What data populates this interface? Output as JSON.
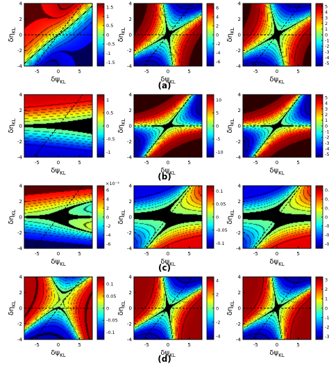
{
  "figure": {
    "rows": [
      {
        "label": "(a)",
        "colorbar_exponent": "",
        "panels": [
          {
            "func": "a1",
            "cb_ticks": [
              "1.5",
              "1",
              "0.5",
              "0",
              "-0.5",
              "-1",
              "-1.5"
            ],
            "cb_range": [
              -1.7,
              1.7
            ]
          },
          {
            "func": "a2",
            "cb_ticks": [
              "6",
              "4",
              "2",
              "0",
              "-2",
              "-4",
              "-6"
            ],
            "cb_range": [
              -7,
              7
            ]
          },
          {
            "func": "a3",
            "cb_ticks": [
              "5",
              "4",
              "3",
              "2",
              "1",
              "0",
              "-1",
              "-2",
              "-3",
              "-4",
              "-5"
            ],
            "cb_range": [
              -5.5,
              5.5
            ]
          }
        ]
      },
      {
        "label": "(b)",
        "colorbar_exponent": "",
        "panels": [
          {
            "func": "b1",
            "cb_ticks": [
              "1",
              "0.5",
              "0",
              "-0.5",
              "-1"
            ],
            "cb_range": [
              -1.2,
              1.2
            ]
          },
          {
            "func": "b2",
            "cb_ticks": [
              "10",
              "5",
              "0",
              "-5",
              "-10"
            ],
            "cb_range": [
              -12,
              12
            ]
          },
          {
            "func": "b3",
            "cb_ticks": [
              "5",
              "4",
              "3",
              "2",
              "1",
              "0",
              "-1",
              "-2",
              "-3",
              "-4",
              "-5"
            ],
            "cb_range": [
              -5.5,
              5.5
            ]
          }
        ]
      },
      {
        "label": "(c)",
        "colorbar_exponent": "×10⁻³",
        "panels": [
          {
            "func": "c1",
            "cb_ticks": [
              "6",
              "4",
              "2",
              "0",
              "-2",
              "-4",
              "-6"
            ],
            "cb_range": [
              -7,
              7
            ]
          },
          {
            "func": "c2",
            "cb_ticks": [
              "0.1",
              "0.05",
              "0",
              "-0.05",
              "-0.1"
            ],
            "cb_range": [
              -0.12,
              0.12
            ]
          },
          {
            "func": "c3",
            "cb_ticks": [
              "0.06",
              "0.04",
              "0.02",
              "0",
              "-0.02",
              "-0.04",
              "-0.06"
            ],
            "cb_range": [
              -0.07,
              0.07
            ]
          }
        ]
      },
      {
        "label": "(d)",
        "colorbar_exponent": "",
        "panels": [
          {
            "func": "d1",
            "cb_ticks": [
              "0.1",
              "0.05",
              "0",
              "-0.05",
              "-0.1"
            ],
            "cb_range": [
              -0.13,
              0.13
            ]
          },
          {
            "func": "d2",
            "cb_ticks": [
              "4",
              "2",
              "0",
              "-2",
              "-4"
            ],
            "cb_range": [
              -4.5,
              4.5
            ]
          },
          {
            "func": "d3",
            "cb_ticks": [
              "3",
              "2",
              "1",
              "0",
              "-1",
              "-2",
              "-3"
            ],
            "cb_range": [
              -3.3,
              3.3
            ]
          }
        ]
      }
    ],
    "x_axis_label": "δψ",
    "x_axis_sub": "KL",
    "y_axis_label": "δη",
    "y_axis_sub": "KL",
    "x_ticks": [
      "-5",
      "0",
      "5"
    ],
    "y_ticks": [
      "4",
      "2",
      "0",
      "-2",
      "-4"
    ]
  },
  "chart_data": {
    "type": "heatmap",
    "layout": "4 rows x 3 columns of contour maps",
    "xlabel": "δψKL",
    "ylabel": "δηKL",
    "xlim": [
      -8,
      8
    ],
    "ylim": [
      -4,
      4
    ],
    "x_ticks": [
      -5,
      0,
      5
    ],
    "y_ticks": [
      -4,
      -2,
      0,
      2,
      4
    ],
    "dashed_reference_lines": [
      "δηKL = 0",
      "δηKL = 0.7·δψKL"
    ],
    "colormap": "jet",
    "panel_labels": [
      "(a)",
      "(b)",
      "(c)",
      "(d)"
    ],
    "colorbar_ranges": {
      "a": [
        [
          -1.5,
          1.5
        ],
        [
          -6,
          6
        ],
        [
          -5,
          5
        ]
      ],
      "b": [
        [
          -1,
          1
        ],
        [
          -10,
          10
        ],
        [
          -5,
          5
        ]
      ],
      "c": [
        [
          -0.006,
          0.006
        ],
        [
          -0.1,
          0.1
        ],
        [
          -0.06,
          0.06
        ]
      ],
      "d": [
        [
          -0.1,
          0.1
        ],
        [
          -4,
          4
        ],
        [
          -3,
          3
        ]
      ]
    }
  }
}
